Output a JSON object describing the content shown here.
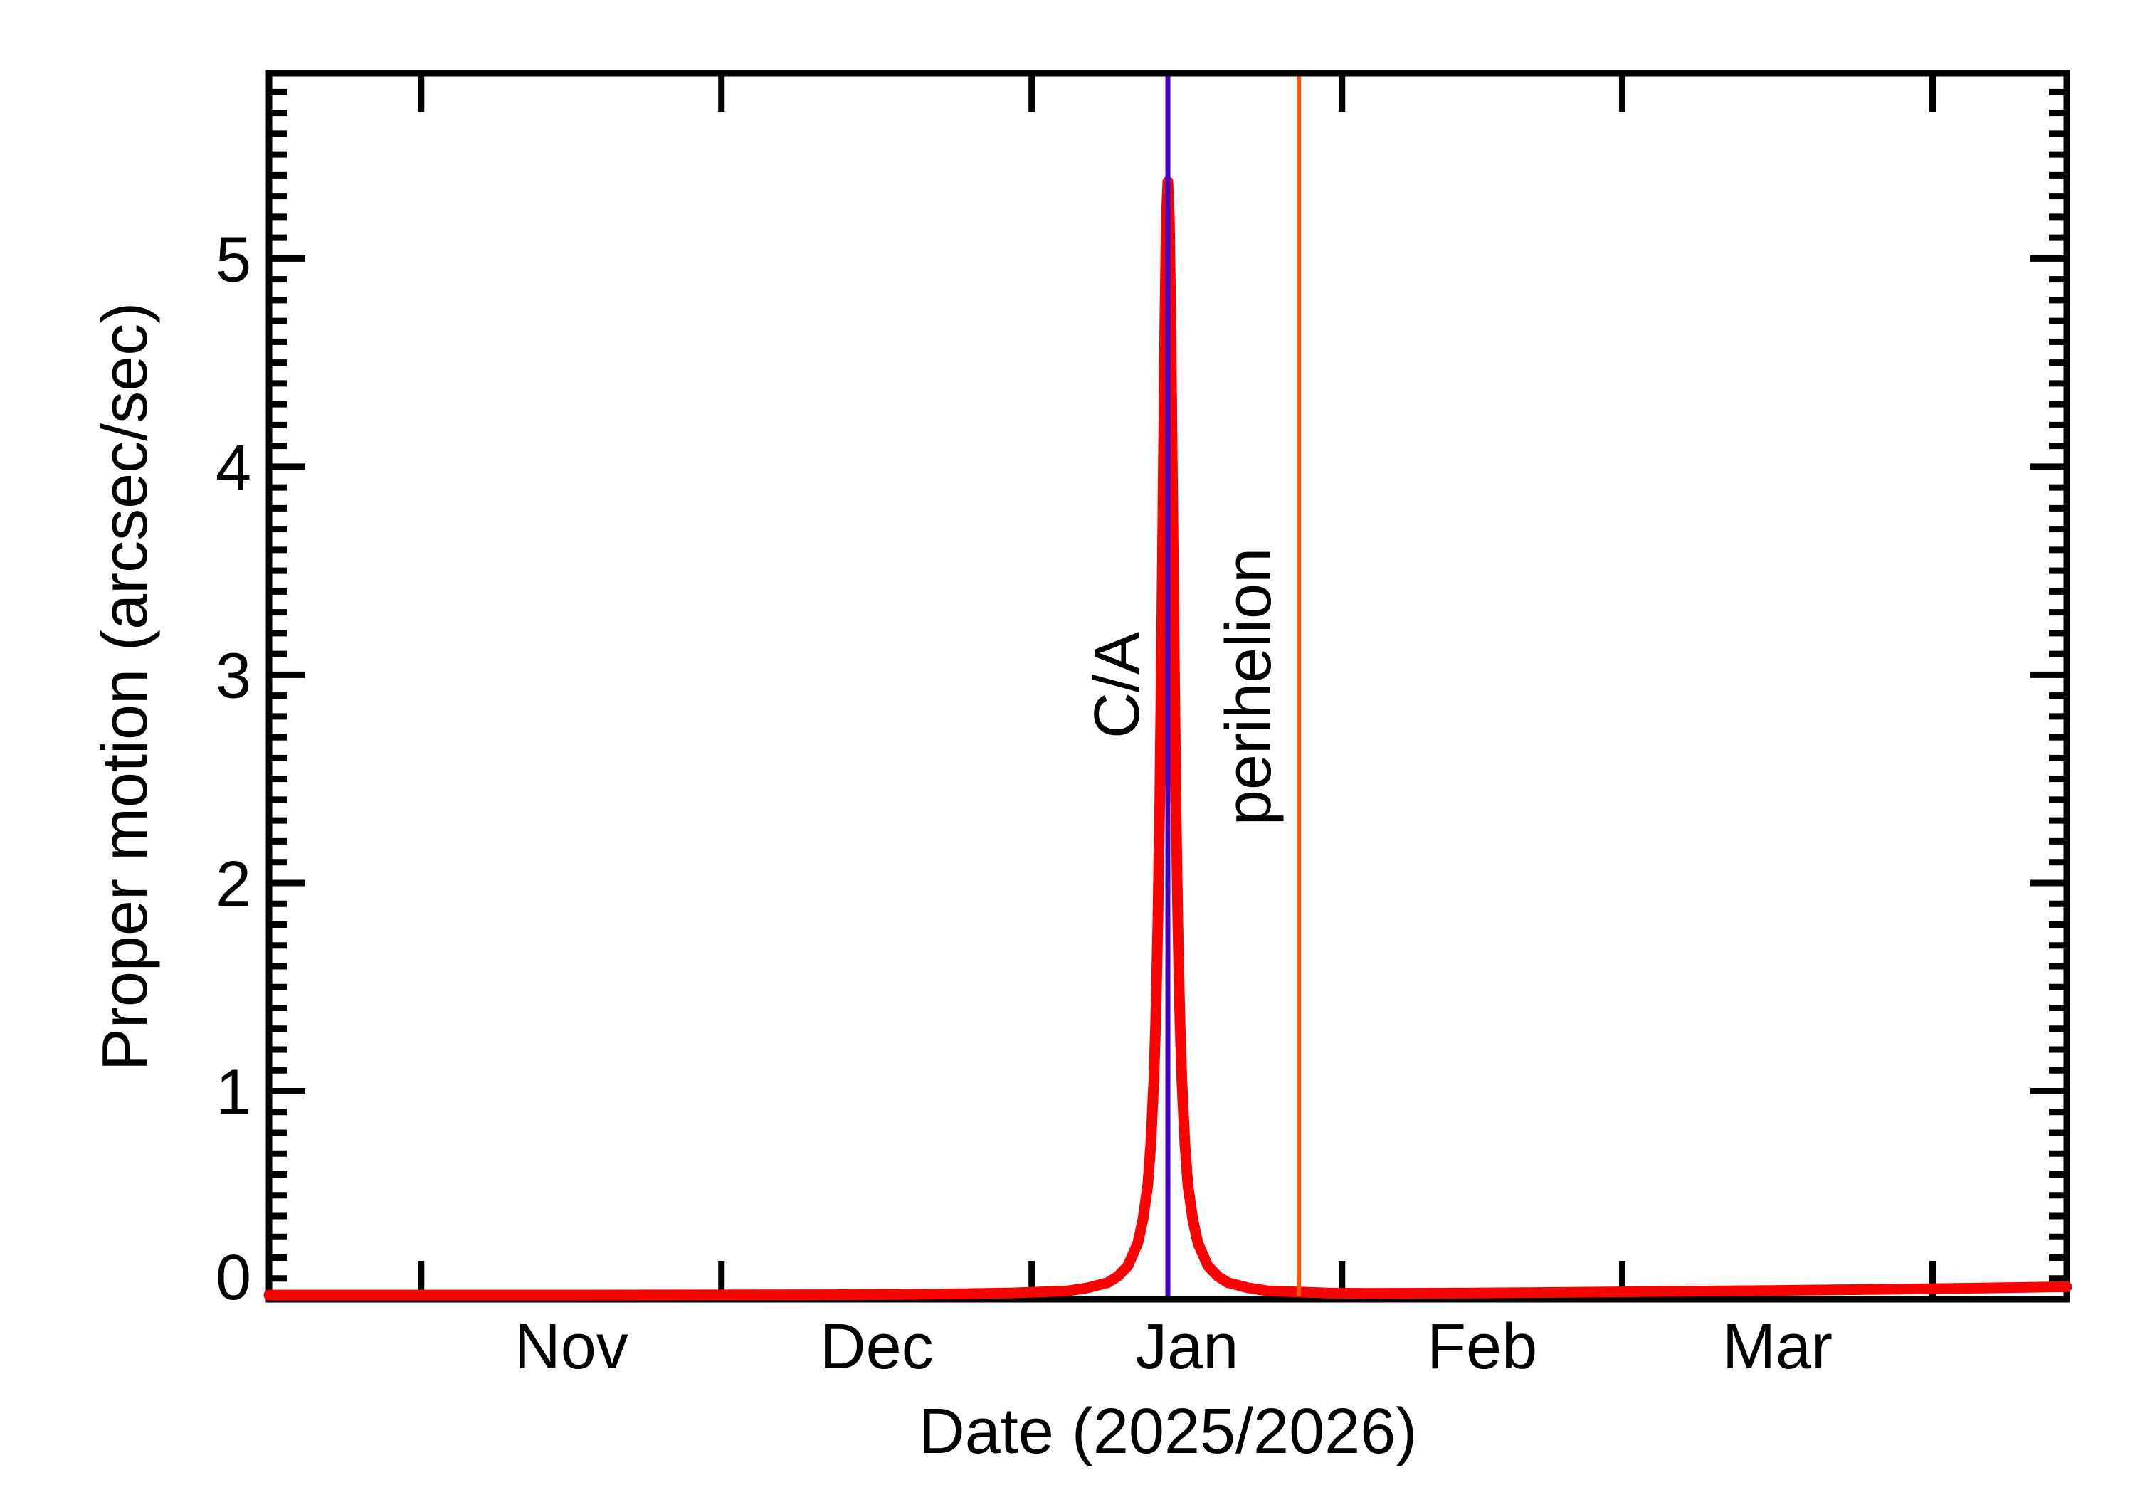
{
  "page": {
    "background": "#ffffff",
    "description": "Proper motion versus date plot with close-approach and perihelion markers"
  },
  "chart_data": {
    "type": "line",
    "title": "",
    "xlabel": "Date (2025/2026)",
    "ylabel": "Proper motion (arcsec/sec)",
    "grid": false,
    "legend": false,
    "frame_color": "#000000",
    "x_axis": {
      "unit": "days from 2025-10-17",
      "range": [
        0,
        179.6
      ],
      "month_boundary_ticks": [
        {
          "date": "2025-11-01",
          "day": 15.2
        },
        {
          "date": "2025-12-01",
          "day": 45.2
        },
        {
          "date": "2026-01-01",
          "day": 76.2
        },
        {
          "date": "2026-02-01",
          "day": 107.2
        },
        {
          "date": "2026-03-01",
          "day": 135.2
        },
        {
          "date": "2026-04-01",
          "day": 166.2
        }
      ],
      "month_labels": [
        {
          "label": "Nov",
          "day": 30.2
        },
        {
          "label": "Dec",
          "day": 60.7
        },
        {
          "label": "Jan",
          "day": 91.7
        },
        {
          "label": "Feb",
          "day": 121.2
        },
        {
          "label": "Mar",
          "day": 150.7
        }
      ]
    },
    "y_axis": {
      "range": [
        0,
        5.89
      ],
      "major_ticks": [
        0,
        1,
        2,
        3,
        4,
        5
      ],
      "minor_step": 0.1
    },
    "series": [
      {
        "name": "proper-motion",
        "color": "#ff0000",
        "line_width": 15,
        "points": [
          [
            0,
            0.02
          ],
          [
            15,
            0.02
          ],
          [
            30,
            0.02
          ],
          [
            45,
            0.021
          ],
          [
            55,
            0.022
          ],
          [
            65,
            0.024
          ],
          [
            70,
            0.027
          ],
          [
            74,
            0.03
          ],
          [
            77,
            0.035
          ],
          [
            79.8,
            0.04
          ],
          [
            81.8,
            0.055
          ],
          [
            83.8,
            0.08
          ],
          [
            84.8,
            0.11
          ],
          [
            85.8,
            0.16
          ],
          [
            86.8,
            0.27
          ],
          [
            87.3,
            0.38
          ],
          [
            87.8,
            0.55
          ],
          [
            88.1,
            0.75
          ],
          [
            88.4,
            1.05
          ],
          [
            88.6,
            1.35
          ],
          [
            88.8,
            1.8
          ],
          [
            89.0,
            2.4
          ],
          [
            89.2,
            3.3
          ],
          [
            89.35,
            4.0
          ],
          [
            89.5,
            4.7
          ],
          [
            89.65,
            5.2
          ],
          [
            89.8,
            5.37
          ],
          [
            89.95,
            5.2
          ],
          [
            90.1,
            4.7
          ],
          [
            90.25,
            4.0
          ],
          [
            90.4,
            3.3
          ],
          [
            90.6,
            2.4
          ],
          [
            90.8,
            1.8
          ],
          [
            91.0,
            1.35
          ],
          [
            91.2,
            1.05
          ],
          [
            91.5,
            0.75
          ],
          [
            91.8,
            0.55
          ],
          [
            92.3,
            0.38
          ],
          [
            92.8,
            0.27
          ],
          [
            93.8,
            0.16
          ],
          [
            94.8,
            0.11
          ],
          [
            95.8,
            0.08
          ],
          [
            97.8,
            0.055
          ],
          [
            99.8,
            0.04
          ],
          [
            102.8,
            0.035
          ],
          [
            105.8,
            0.03
          ],
          [
            110,
            0.028
          ],
          [
            120,
            0.03
          ],
          [
            130,
            0.033
          ],
          [
            140,
            0.038
          ],
          [
            150,
            0.042
          ],
          [
            160,
            0.047
          ],
          [
            170,
            0.053
          ],
          [
            179.6,
            0.06
          ]
        ]
      }
    ],
    "annotations": [
      {
        "name": "close-approach",
        "label": "C/A",
        "day": 89.8,
        "date_approx": "2026-01-15",
        "color": "#4400bb",
        "line_width": 7
      },
      {
        "name": "perihelion",
        "label": "perihelion",
        "day": 102.9,
        "date_approx": "2026-01-28",
        "color": "#ff5500",
        "line_width": 6
      }
    ],
    "peak": {
      "day": 89.8,
      "value": 5.37
    }
  }
}
